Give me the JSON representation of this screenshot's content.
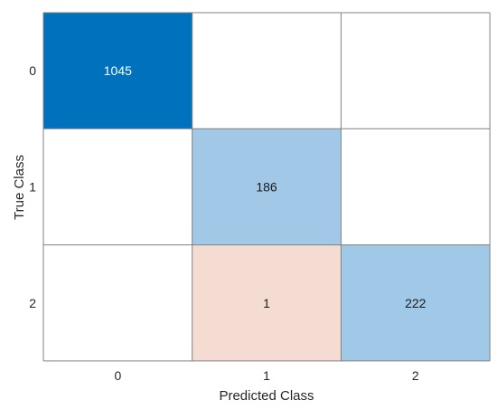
{
  "chart_data": {
    "type": "heatmap",
    "subtype": "confusion-matrix",
    "xlabel": "Predicted Class",
    "ylabel": "True Class",
    "x_categories": [
      "0",
      "1",
      "2"
    ],
    "y_categories": [
      "0",
      "1",
      "2"
    ],
    "matrix": [
      [
        1045,
        null,
        null
      ],
      [
        null,
        186,
        null
      ],
      [
        null,
        1,
        222
      ]
    ],
    "colors": {
      "diagonal_high": "#0072bd",
      "diagonal_mid": "#a5cbe8",
      "off_diagonal": "#f5dcd2",
      "empty": "#ffffff",
      "border": "#808080",
      "text_dark": "#1a1a1a",
      "text_light": "#ffffff"
    }
  }
}
